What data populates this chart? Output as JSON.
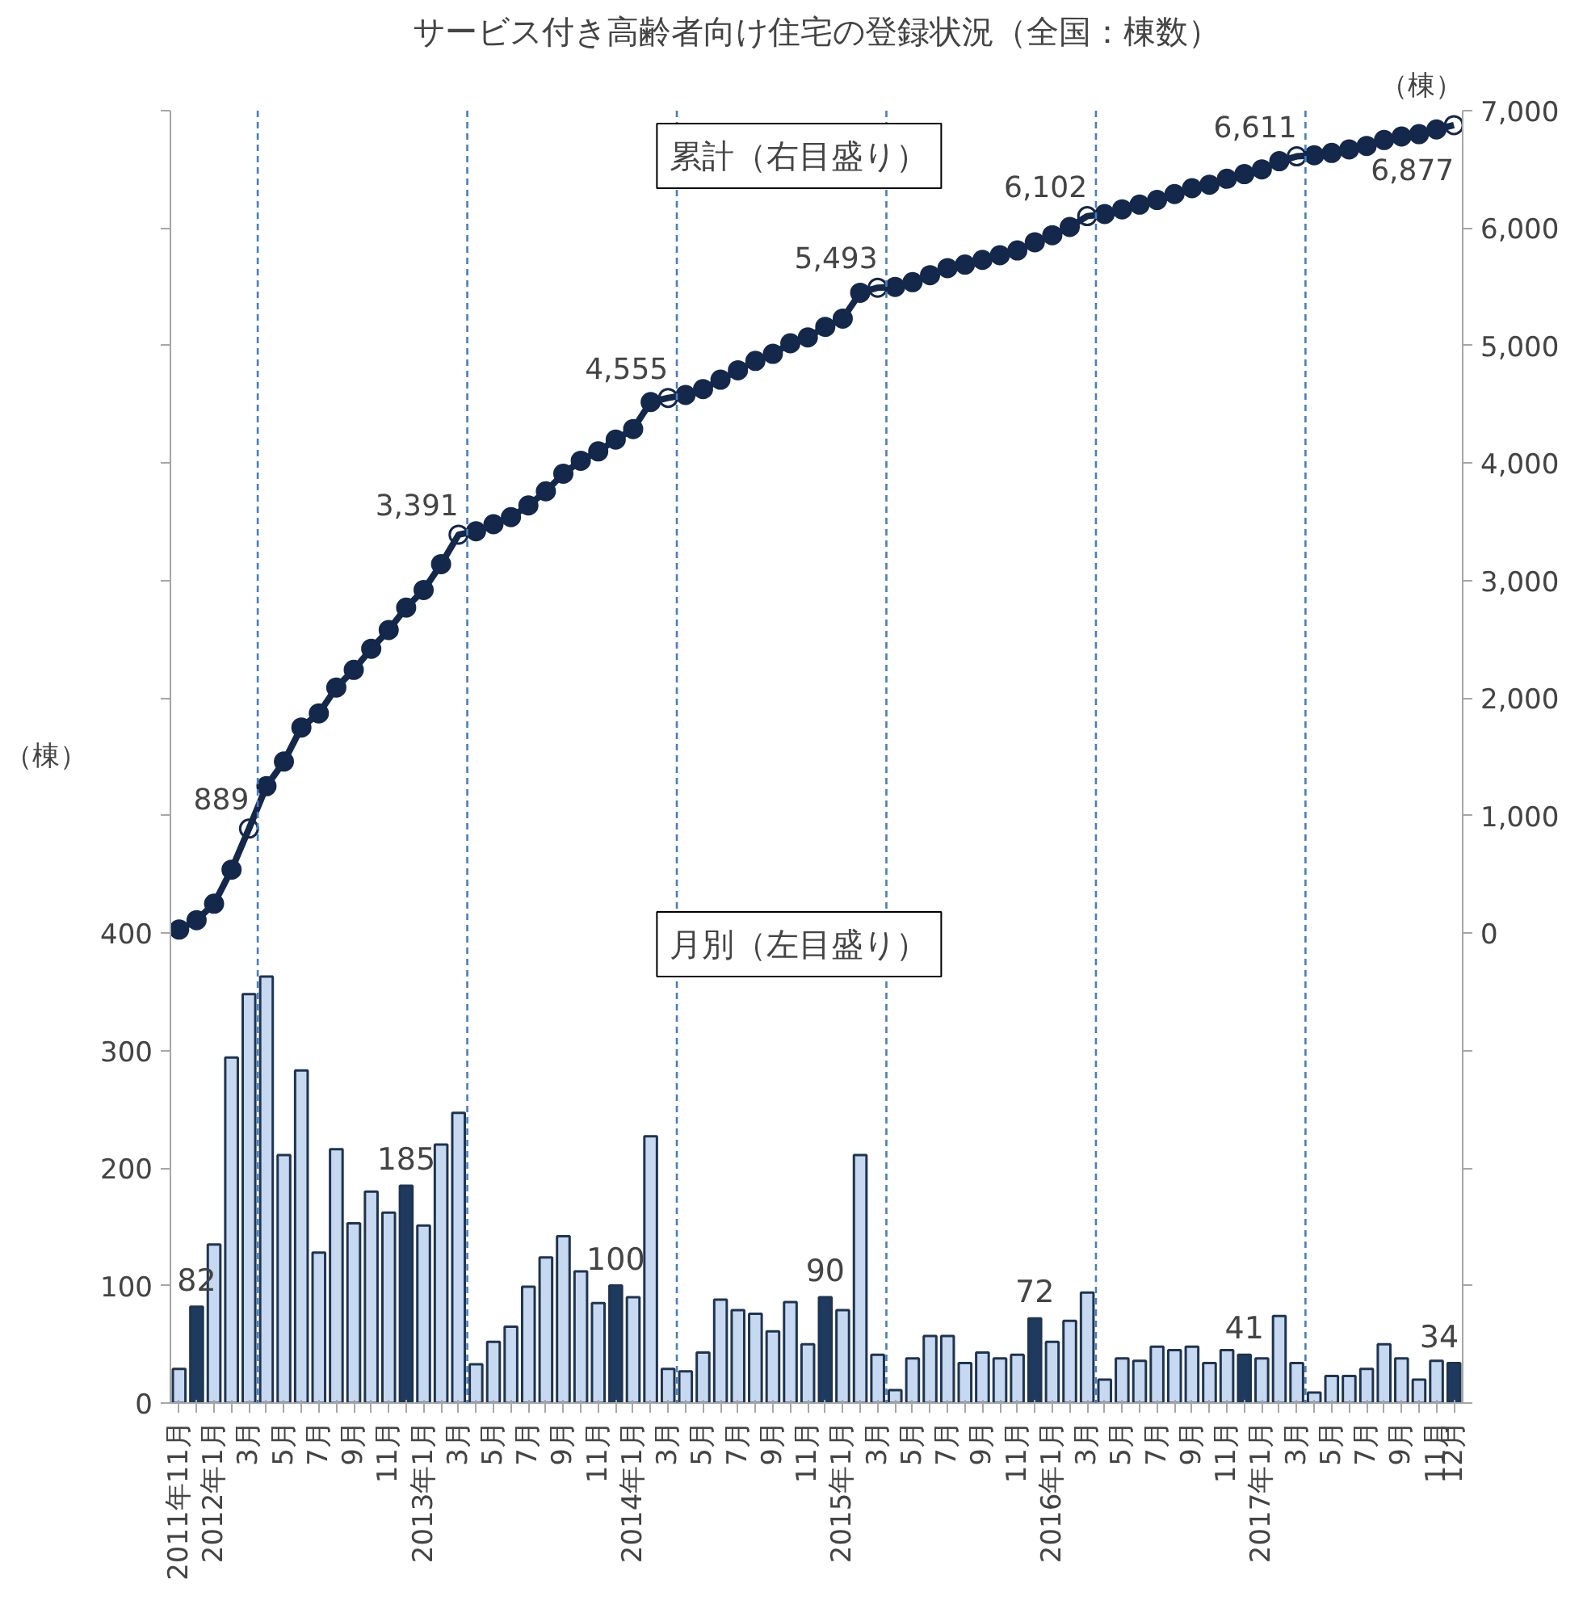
{
  "chart_data": {
    "type": "bar",
    "title": "サービス付き高齢者向け住宅の登録状況（全国：棟数）",
    "ylabel": "（棟）",
    "y2label": "（棟）",
    "annotations": [
      "累計（右目盛り）",
      "月別（左目盛り）"
    ],
    "categories": [
      "2011年11月",
      null,
      "2012年1月",
      null,
      "3月",
      null,
      "5月",
      null,
      "7月",
      null,
      "9月",
      null,
      "11月",
      null,
      "2013年1月",
      null,
      "3月",
      null,
      "5月",
      null,
      "7月",
      null,
      "9月",
      null,
      "11月",
      null,
      "2014年1月",
      null,
      "3月",
      null,
      "5月",
      null,
      "7月",
      null,
      "9月",
      null,
      "11月",
      null,
      "2015年1月",
      null,
      "3月",
      null,
      "5月",
      null,
      "7月",
      null,
      "9月",
      null,
      "11月",
      null,
      "2016年1月",
      null,
      "3月",
      null,
      "5月",
      null,
      "7月",
      null,
      "9月",
      null,
      "11月",
      null,
      "2017年1月",
      null,
      "3月",
      null,
      "5月",
      null,
      "7月",
      null,
      "9月",
      null,
      "11月",
      "12月"
    ],
    "series": [
      {
        "colors": [
          "#c6d9f1",
          "#1f3a5f",
          "#c6d9f1",
          "#c6d9f1",
          "#c6d9f1",
          "#c6d9f1",
          "#c6d9f1",
          "#c6d9f1",
          "#c6d9f1",
          "#c6d9f1",
          "#c6d9f1",
          "#c6d9f1",
          "#c6d9f1",
          "#1f3a5f",
          "#c6d9f1",
          "#c6d9f1",
          "#c6d9f1",
          "#c6d9f1",
          "#c6d9f1",
          "#c6d9f1",
          "#c6d9f1",
          "#c6d9f1",
          "#c6d9f1",
          "#c6d9f1",
          "#c6d9f1",
          "#1f3a5f",
          "#c6d9f1",
          "#c6d9f1",
          "#c6d9f1",
          "#c6d9f1",
          "#c6d9f1",
          "#c6d9f1",
          "#c6d9f1",
          "#c6d9f1",
          "#c6d9f1",
          "#c6d9f1",
          "#c6d9f1",
          "#1f3a5f",
          "#c6d9f1",
          "#c6d9f1",
          "#c6d9f1",
          "#c6d9f1",
          "#c6d9f1",
          "#c6d9f1",
          "#c6d9f1",
          "#c6d9f1",
          "#c6d9f1",
          "#c6d9f1",
          "#c6d9f1",
          "#1f3a5f",
          "#c6d9f1",
          "#c6d9f1",
          "#c6d9f1",
          "#c6d9f1",
          "#c6d9f1",
          "#c6d9f1",
          "#c6d9f1",
          "#c6d9f1",
          "#c6d9f1",
          "#c6d9f1",
          "#c6d9f1",
          "#1f3a5f",
          "#c6d9f1",
          "#c6d9f1",
          "#c6d9f1",
          "#c6d9f1",
          "#c6d9f1",
          "#c6d9f1",
          "#c6d9f1",
          "#c6d9f1",
          "#c6d9f1",
          "#c6d9f1",
          "#c6d9f1",
          "#1f3a5f"
        ],
        "values": [
          29,
          82,
          135,
          294,
          348,
          363,
          211,
          283,
          128,
          216,
          153,
          180,
          162,
          185,
          151,
          220,
          247,
          33,
          52,
          65,
          99,
          124,
          142,
          112,
          85,
          100,
          90,
          227,
          29,
          27,
          43,
          88,
          79,
          76,
          61,
          86,
          50,
          90,
          79,
          211,
          41,
          11,
          38,
          57,
          57,
          34,
          43,
          38,
          41,
          72,
          52,
          70,
          94,
          20,
          38,
          36,
          48,
          45,
          48,
          34,
          45,
          41,
          38,
          74,
          34,
          9,
          23,
          23,
          29,
          50,
          38,
          20,
          36,
          34
        ],
        "value_labels": [
          null,
          "82",
          null,
          null,
          null,
          null,
          null,
          null,
          null,
          null,
          null,
          null,
          null,
          "185",
          null,
          null,
          null,
          null,
          null,
          null,
          null,
          null,
          null,
          null,
          null,
          "100",
          null,
          null,
          null,
          null,
          null,
          null,
          null,
          null,
          null,
          null,
          null,
          "90",
          null,
          null,
          null,
          null,
          null,
          null,
          null,
          null,
          null,
          null,
          null,
          "72",
          null,
          null,
          null,
          null,
          null,
          null,
          null,
          null,
          null,
          null,
          null,
          "41",
          null,
          null,
          null,
          null,
          null,
          null,
          null,
          null,
          null,
          null,
          null,
          "34"
        ]
      },
      {
        "type": "line",
        "axis": "y2",
        "color": "#14284b",
        "marker": "circle",
        "line_style": "solid",
        "values": [
          30,
          110,
          250,
          540,
          889,
          1250,
          1460,
          1750,
          1870,
          2090,
          2240,
          2420,
          2580,
          2770,
          2920,
          3140,
          3391,
          3420,
          3480,
          3540,
          3640,
          3760,
          3910,
          4020,
          4100,
          4200,
          4290,
          4520,
          4555,
          4580,
          4630,
          4710,
          4790,
          4870,
          4930,
          5020,
          5070,
          5160,
          5230,
          5450,
          5493,
          5500,
          5540,
          5600,
          5660,
          5690,
          5730,
          5770,
          5810,
          5880,
          5940,
          6010,
          6102,
          6120,
          6160,
          6200,
          6240,
          6290,
          6340,
          6370,
          6420,
          6460,
          6500,
          6570,
          6611,
          6620,
          6640,
          6670,
          6700,
          6750,
          6780,
          6800,
          6840,
          6877
        ],
        "value_labels": [
          null,
          null,
          null,
          null,
          "889",
          null,
          null,
          null,
          null,
          null,
          null,
          null,
          null,
          null,
          null,
          null,
          "3,391",
          null,
          null,
          null,
          null,
          null,
          null,
          null,
          null,
          null,
          null,
          null,
          "4,555",
          null,
          null,
          null,
          null,
          null,
          null,
          null,
          null,
          null,
          null,
          null,
          "5,493",
          null,
          null,
          null,
          null,
          null,
          null,
          null,
          null,
          null,
          null,
          null,
          "6,102",
          null,
          null,
          null,
          null,
          null,
          null,
          null,
          null,
          null,
          null,
          null,
          "6,611",
          null,
          null,
          null,
          null,
          null,
          null,
          null,
          null,
          "6,877"
        ]
      }
    ],
    "ylim": [
      0,
      1100
    ],
    "yticks": [
      0,
      100,
      200,
      300,
      400,
      {
        "value": 500,
        "label": null
      },
      {
        "value": 600,
        "label": null
      },
      {
        "value": 700,
        "label": null
      },
      {
        "value": 800,
        "label": null
      },
      {
        "value": 900,
        "label": null
      },
      {
        "value": 1000,
        "label": null
      },
      {
        "value": 1100,
        "label": null
      }
    ],
    "y2lim": [
      -4000,
      7000
    ],
    "y2ticks": [
      {
        "value": -4000,
        "label": null
      },
      {
        "value": -3000,
        "label": null
      },
      {
        "value": -2000,
        "label": null
      },
      {
        "value": -1000,
        "label": null
      },
      {
        "value": 0,
        "label": "0"
      },
      {
        "value": 1000,
        "label": "1,000"
      },
      {
        "value": 2000,
        "label": "2,000"
      },
      {
        "value": 3000,
        "label": "3,000"
      },
      {
        "value": 4000,
        "label": "4,000"
      },
      {
        "value": 5000,
        "label": "5,000"
      },
      {
        "value": 6000,
        "label": "6,000"
      },
      {
        "value": 7000,
        "label": "7,000"
      }
    ],
    "grid": false
  }
}
